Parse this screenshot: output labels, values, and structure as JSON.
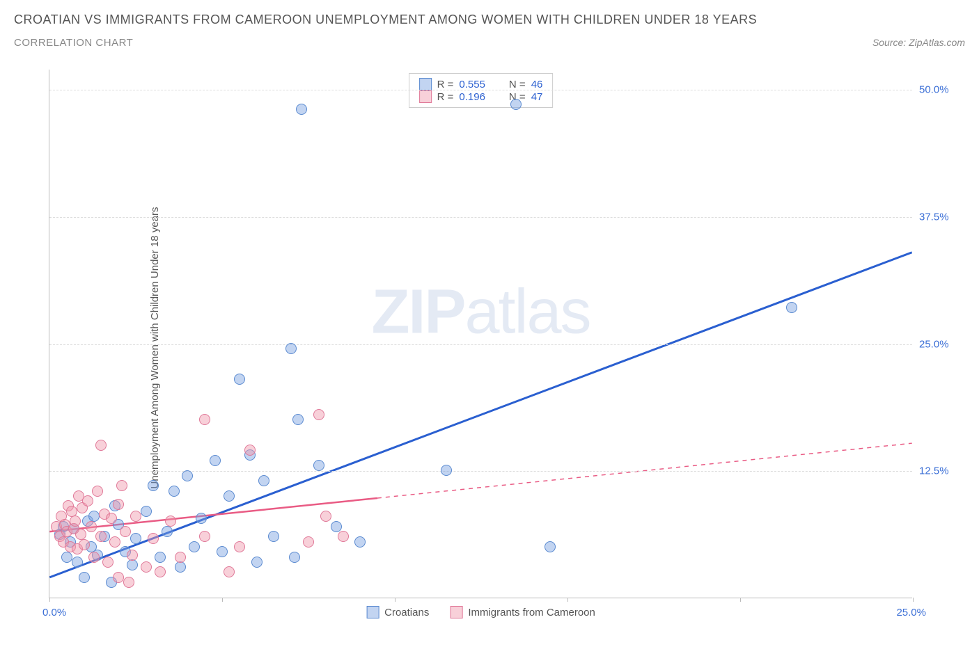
{
  "header": {
    "title": "CROATIAN VS IMMIGRANTS FROM CAMEROON UNEMPLOYMENT AMONG WOMEN WITH CHILDREN UNDER 18 YEARS",
    "subtitle": "CORRELATION CHART",
    "source": "Source: ZipAtlas.com"
  },
  "chart": {
    "type": "scatter",
    "ylabel": "Unemployment Among Women with Children Under 18 years",
    "xlim": [
      0,
      25
    ],
    "ylim": [
      0,
      52
    ],
    "xtick_positions": [
      0,
      5,
      10,
      15,
      20,
      25
    ],
    "xtick_labels_shown": {
      "0": "0.0%",
      "25": "25.0%"
    },
    "ytick_positions": [
      12.5,
      25.0,
      37.5,
      50.0
    ],
    "ytick_labels": [
      "12.5%",
      "25.0%",
      "37.5%",
      "50.0%"
    ],
    "grid_color": "#dddddd",
    "axis_color": "#bbbbbb",
    "background_color": "#ffffff",
    "watermark": {
      "bold": "ZIP",
      "light": "atlas",
      "color": "#e4eaf4"
    },
    "series": [
      {
        "name": "Croatians",
        "color_fill": "rgba(120,160,225,0.45)",
        "color_stroke": "#5a8ad0",
        "line_color": "#2a5fd0",
        "line_dash": "none",
        "r": 0.555,
        "n": 46,
        "trend": {
          "x1": 0,
          "y1": 2.0,
          "x2": 25,
          "y2": 34.0
        },
        "points": [
          [
            0.3,
            6.2
          ],
          [
            0.4,
            7.0
          ],
          [
            0.5,
            4.0
          ],
          [
            0.6,
            5.5
          ],
          [
            0.7,
            6.8
          ],
          [
            0.8,
            3.5
          ],
          [
            1.0,
            2.0
          ],
          [
            1.1,
            7.5
          ],
          [
            1.2,
            5.0
          ],
          [
            1.3,
            8.0
          ],
          [
            1.4,
            4.2
          ],
          [
            1.6,
            6.0
          ],
          [
            1.8,
            1.5
          ],
          [
            1.9,
            9.0
          ],
          [
            2.0,
            7.2
          ],
          [
            2.2,
            4.5
          ],
          [
            2.4,
            3.2
          ],
          [
            2.5,
            5.8
          ],
          [
            2.8,
            8.5
          ],
          [
            3.0,
            11.0
          ],
          [
            3.2,
            4.0
          ],
          [
            3.4,
            6.5
          ],
          [
            3.6,
            10.5
          ],
          [
            3.8,
            3.0
          ],
          [
            4.0,
            12.0
          ],
          [
            4.2,
            5.0
          ],
          [
            4.4,
            7.8
          ],
          [
            4.8,
            13.5
          ],
          [
            5.0,
            4.5
          ],
          [
            5.2,
            10.0
          ],
          [
            5.5,
            21.5
          ],
          [
            5.8,
            14.0
          ],
          [
            6.0,
            3.5
          ],
          [
            6.2,
            11.5
          ],
          [
            6.5,
            6.0
          ],
          [
            7.0,
            24.5
          ],
          [
            7.1,
            4.0
          ],
          [
            7.2,
            17.5
          ],
          [
            7.3,
            48.0
          ],
          [
            7.8,
            13.0
          ],
          [
            8.3,
            7.0
          ],
          [
            9.0,
            5.5
          ],
          [
            11.5,
            12.5
          ],
          [
            13.5,
            48.5
          ],
          [
            14.5,
            5.0
          ],
          [
            21.5,
            28.5
          ]
        ]
      },
      {
        "name": "Immigrants from Cameroon",
        "color_fill": "rgba(240,150,170,0.45)",
        "color_stroke": "#e07898",
        "line_color": "#e95b84",
        "line_dash": "dashed_extension",
        "r": 0.196,
        "n": 47,
        "trend": {
          "x1": 0,
          "y1": 6.5,
          "x2": 9.5,
          "y2": 9.8,
          "x2_ext": 25,
          "y2_ext": 15.2
        },
        "points": [
          [
            0.2,
            7.0
          ],
          [
            0.3,
            6.0
          ],
          [
            0.35,
            8.0
          ],
          [
            0.4,
            5.5
          ],
          [
            0.45,
            7.2
          ],
          [
            0.5,
            6.5
          ],
          [
            0.55,
            9.0
          ],
          [
            0.6,
            5.0
          ],
          [
            0.65,
            8.5
          ],
          [
            0.7,
            6.8
          ],
          [
            0.75,
            7.5
          ],
          [
            0.8,
            4.8
          ],
          [
            0.85,
            10.0
          ],
          [
            0.9,
            6.2
          ],
          [
            0.95,
            8.8
          ],
          [
            1.0,
            5.2
          ],
          [
            1.1,
            9.5
          ],
          [
            1.2,
            7.0
          ],
          [
            1.3,
            4.0
          ],
          [
            1.4,
            10.5
          ],
          [
            1.5,
            6.0
          ],
          [
            1.5,
            15.0
          ],
          [
            1.6,
            8.2
          ],
          [
            1.7,
            3.5
          ],
          [
            1.8,
            7.8
          ],
          [
            1.9,
            5.5
          ],
          [
            2.0,
            9.2
          ],
          [
            2.0,
            2.0
          ],
          [
            2.1,
            11.0
          ],
          [
            2.2,
            6.5
          ],
          [
            2.3,
            1.5
          ],
          [
            2.4,
            4.2
          ],
          [
            2.5,
            8.0
          ],
          [
            2.8,
            3.0
          ],
          [
            3.0,
            5.8
          ],
          [
            3.2,
            2.5
          ],
          [
            3.5,
            7.5
          ],
          [
            3.8,
            4.0
          ],
          [
            4.5,
            6.0
          ],
          [
            4.5,
            17.5
          ],
          [
            5.2,
            2.5
          ],
          [
            5.5,
            5.0
          ],
          [
            5.8,
            14.5
          ],
          [
            7.5,
            5.5
          ],
          [
            7.8,
            18.0
          ],
          [
            8.0,
            8.0
          ],
          [
            8.5,
            6.0
          ]
        ]
      }
    ],
    "legend_top": {
      "r_label": "R =",
      "n_label": "N ="
    },
    "legend_bottom": [
      "Croatians",
      "Immigrants from Cameroon"
    ]
  }
}
